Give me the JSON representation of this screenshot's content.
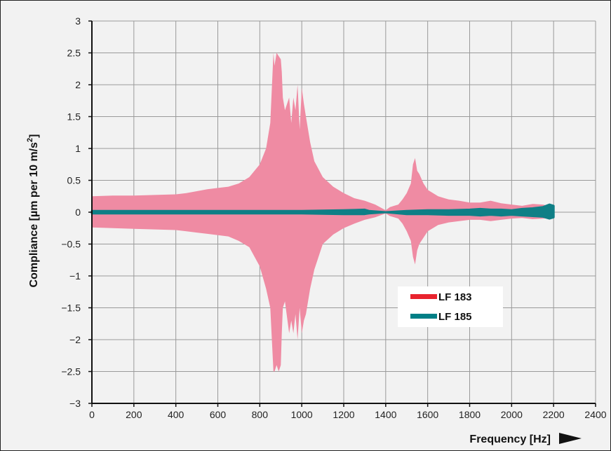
{
  "chart_data": {
    "type": "area",
    "xlabel": "Frequency [Hz]",
    "ylabel_main": "Compliance [µm per 10 m/s",
    "ylabel_sup": "2",
    "ylabel_close": "]",
    "xlim": [
      0,
      2400
    ],
    "ylim": [
      -3,
      3
    ],
    "x_ticks": [
      0,
      200,
      400,
      600,
      800,
      1000,
      1200,
      1400,
      1600,
      1800,
      2000,
      2200,
      2400
    ],
    "x_tick_labels": [
      "0",
      "200",
      "400",
      "600",
      "800",
      "1000",
      "1200",
      "1400",
      "1600",
      "1800",
      "2000",
      "2200",
      "2400"
    ],
    "y_ticks": [
      3,
      2.5,
      2,
      1.5,
      1,
      0.5,
      0,
      -0.5,
      -1,
      -1.5,
      -2,
      -2.5,
      -3
    ],
    "y_tick_labels": [
      "3",
      "2.5",
      "2",
      "1.5",
      "1",
      "0.5",
      "0",
      "−0.5",
      "−1",
      "−1.5",
      "−2",
      "−2.5",
      "−3"
    ],
    "grid": true,
    "legend_position": "center-right",
    "series": [
      {
        "name": "LF 183",
        "legend_color": "#e8232e",
        "fill_color": "#ef8ba3",
        "x": [
          0,
          100,
          200,
          300,
          400,
          450,
          500,
          550,
          600,
          650,
          700,
          750,
          800,
          830,
          850,
          865,
          870,
          880,
          890,
          900,
          905,
          910,
          920,
          940,
          950,
          960,
          970,
          980,
          990,
          1000,
          1010,
          1020,
          1040,
          1060,
          1100,
          1150,
          1200,
          1250,
          1300,
          1350,
          1400,
          1420,
          1440,
          1460,
          1480,
          1500,
          1520,
          1530,
          1540,
          1550,
          1560,
          1580,
          1600,
          1650,
          1700,
          1750,
          1800,
          1850,
          1900,
          1950,
          2000,
          2050,
          2100,
          2150,
          2200
        ],
        "upper": [
          0.25,
          0.26,
          0.26,
          0.27,
          0.28,
          0.3,
          0.33,
          0.36,
          0.38,
          0.4,
          0.45,
          0.55,
          0.75,
          1.0,
          1.4,
          2.5,
          2.3,
          2.5,
          2.45,
          2.4,
          2.2,
          1.8,
          1.6,
          1.8,
          1.4,
          1.8,
          1.6,
          2.0,
          1.3,
          1.95,
          1.7,
          1.5,
          1.1,
          0.8,
          0.55,
          0.4,
          0.3,
          0.22,
          0.18,
          0.12,
          0.03,
          0.08,
          0.1,
          0.12,
          0.2,
          0.3,
          0.45,
          0.75,
          0.85,
          0.65,
          0.6,
          0.45,
          0.35,
          0.25,
          0.2,
          0.18,
          0.15,
          0.15,
          0.18,
          0.14,
          0.12,
          0.1,
          0.13,
          0.12,
          0.08
        ],
        "lower": [
          -0.24,
          -0.25,
          -0.26,
          -0.27,
          -0.28,
          -0.3,
          -0.32,
          -0.34,
          -0.36,
          -0.38,
          -0.45,
          -0.55,
          -0.85,
          -1.2,
          -1.5,
          -2.5,
          -2.5,
          -2.4,
          -2.5,
          -2.4,
          -1.9,
          -1.5,
          -1.4,
          -1.9,
          -1.7,
          -1.9,
          -1.6,
          -2.0,
          -1.5,
          -1.9,
          -1.7,
          -1.6,
          -1.2,
          -0.9,
          -0.5,
          -0.35,
          -0.25,
          -0.18,
          -0.12,
          -0.08,
          -0.02,
          -0.06,
          -0.08,
          -0.1,
          -0.18,
          -0.3,
          -0.45,
          -0.7,
          -0.82,
          -0.6,
          -0.5,
          -0.4,
          -0.3,
          -0.2,
          -0.16,
          -0.14,
          -0.12,
          -0.12,
          -0.14,
          -0.12,
          -0.1,
          -0.09,
          -0.11,
          -0.1,
          -0.08
        ]
      },
      {
        "name": "LF 185",
        "legend_color": "#007f86",
        "fill_color": "#0f7f86",
        "x": [
          0,
          200,
          400,
          600,
          800,
          1000,
          1200,
          1300,
          1320,
          1400,
          1500,
          1600,
          1700,
          1800,
          1850,
          1900,
          1950,
          2000,
          2050,
          2100,
          2150,
          2180,
          2200
        ],
        "upper": [
          0.02,
          0.02,
          0.02,
          0.02,
          0.02,
          0.02,
          0.03,
          0.04,
          0.02,
          0.0,
          0.02,
          0.03,
          0.03,
          0.04,
          0.05,
          0.04,
          0.04,
          0.03,
          0.05,
          0.06,
          0.08,
          0.12,
          0.1
        ],
        "lower": [
          -0.02,
          -0.02,
          -0.02,
          -0.02,
          -0.02,
          -0.02,
          -0.03,
          -0.03,
          -0.02,
          0.0,
          -0.03,
          -0.03,
          -0.04,
          -0.04,
          -0.05,
          -0.04,
          -0.05,
          -0.04,
          -0.05,
          -0.06,
          -0.07,
          -0.1,
          -0.08
        ]
      }
    ]
  }
}
